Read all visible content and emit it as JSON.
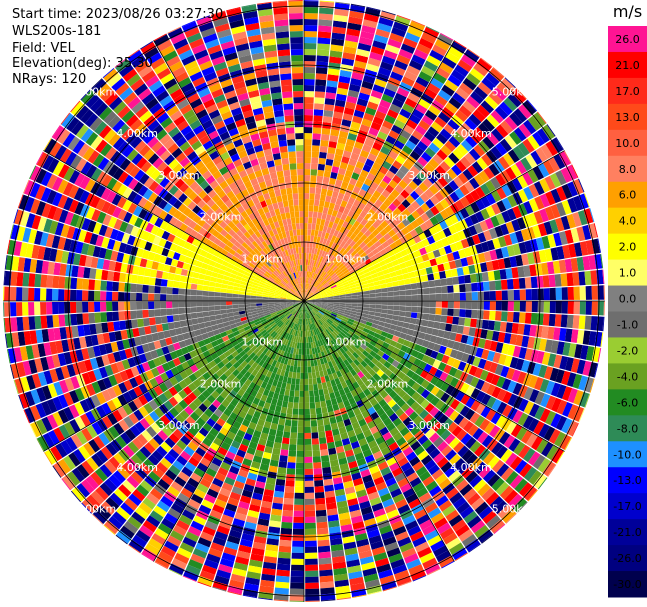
{
  "header": {
    "start_time": "Start time: 2023/08/26 03:27:30",
    "instrument": "WLS200s-181",
    "field": "Field: VEL",
    "elevation": "Elevation(deg): 35.30",
    "nrays": "NRays: 120"
  },
  "chart_data": {
    "type": "ppi-scan",
    "field": "VEL",
    "units": "m/s",
    "nrays": 120,
    "range_rings_km": [
      1.0,
      2.0,
      3.0,
      4.0,
      5.0
    ],
    "range_ring_labels": [
      "1.00km",
      "2.00km",
      "3.00km",
      "4.00km",
      "5.00km"
    ],
    "max_range_km": 5.1,
    "colorbar": {
      "title": "m/s",
      "ticks": [
        "26.0",
        "21.0",
        "17.0",
        "13.0",
        "10.0",
        "8.0",
        "6.0",
        "4.0",
        "2.0",
        "1.0",
        "0.0",
        "-1.0",
        "-2.0",
        "-4.0",
        "-6.0",
        "-8.0",
        "-10.0",
        "-13.0",
        "-17.0",
        "-21.0",
        "-26.0",
        "-30.0"
      ],
      "colors": [
        "#ff1493",
        "#ff0000",
        "#ff2a1a",
        "#ff4a1a",
        "#ff6040",
        "#ff8060",
        "#ffa000",
        "#ffd000",
        "#ffff00",
        "#ffff66",
        "#808080",
        "#6e6e6e",
        "#9acd32",
        "#6aa121",
        "#228b22",
        "#2e8b57",
        "#1e90ff",
        "#0000ff",
        "#0000cd",
        "#000099",
        "#000080",
        "#00004d"
      ]
    },
    "velocity_pattern": {
      "near_range_km": 3.0,
      "sectors": [
        {
          "azimuth_deg_from": 300,
          "azimuth_deg_to": 60,
          "value_range": [
            6.0,
            10.0
          ]
        },
        {
          "azimuth_deg_from": 60,
          "azimuth_deg_to": 80,
          "value_range": [
            2.0,
            4.0
          ]
        },
        {
          "azimuth_deg_from": 80,
          "azimuth_deg_to": 110,
          "value_range": [
            -1.0,
            0.0
          ]
        },
        {
          "azimuth_deg_from": 110,
          "azimuth_deg_to": 250,
          "value_range": [
            -6.0,
            -2.0
          ]
        },
        {
          "azimuth_deg_from": 250,
          "azimuth_deg_to": 275,
          "value_range": [
            -1.0,
            0.0
          ]
        },
        {
          "azimuth_deg_from": 275,
          "azimuth_deg_to": 300,
          "value_range": [
            2.0,
            4.0
          ]
        }
      ],
      "far_range": "noise"
    }
  }
}
